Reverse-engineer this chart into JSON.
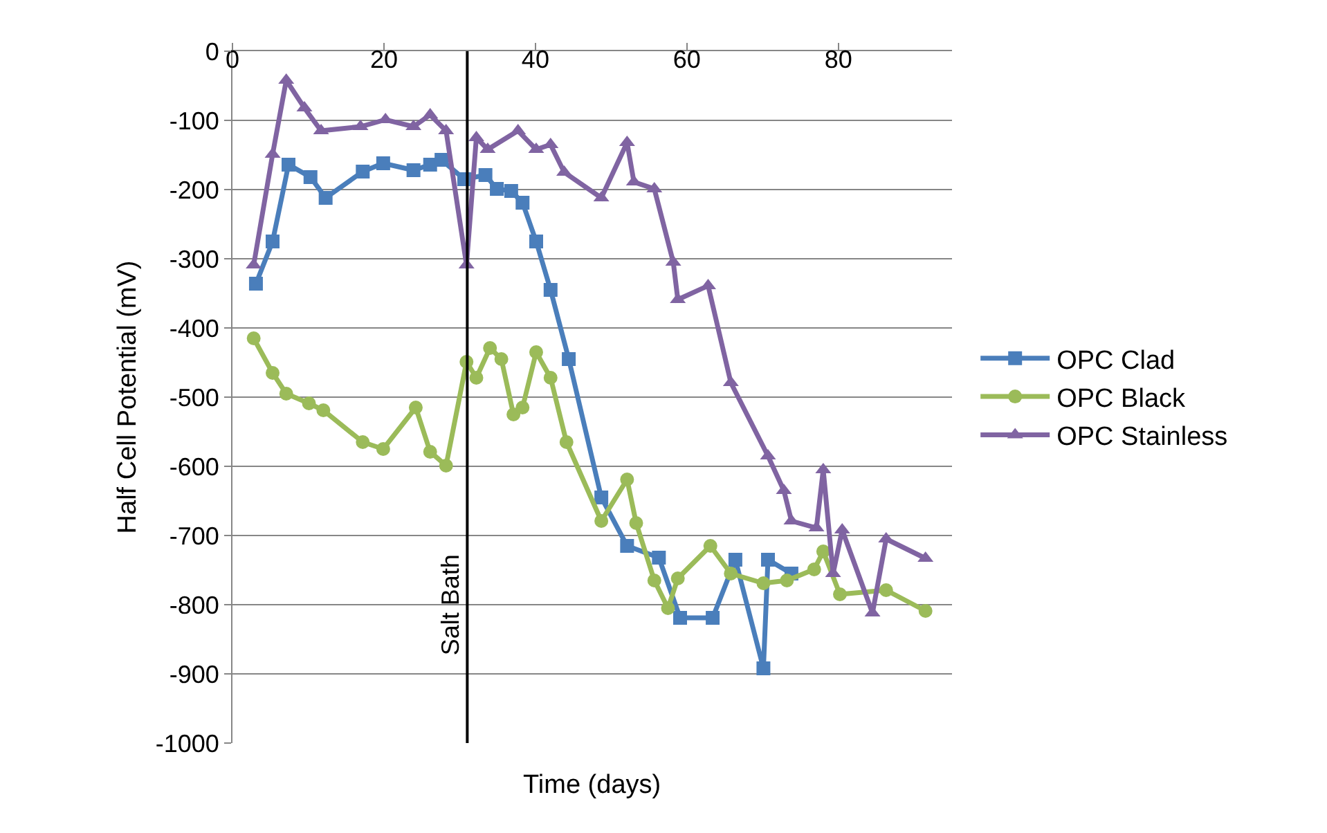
{
  "chart_data": {
    "type": "line",
    "xlabel": "Time (days)",
    "ylabel": "Half Cell Potential (mV)",
    "xlim": [
      0,
      95
    ],
    "xticks": [
      0,
      20,
      40,
      60,
      80
    ],
    "ylim": [
      -1000,
      0
    ],
    "yticks": [
      -1000,
      -900,
      -800,
      -700,
      -600,
      -500,
      -400,
      -300,
      -200,
      -100,
      0
    ],
    "grid": "y",
    "legend": "right",
    "line_style": "solid",
    "ref_lines": [
      {
        "axis": "x",
        "value": 31,
        "label": "Salt Bath",
        "color": "#000000"
      }
    ],
    "series": [
      {
        "name": "OPC Clad",
        "color": "#4a7ebb",
        "marker": "square",
        "x": [
          3.1,
          5.3,
          7.4,
          10.3,
          12.3,
          17.2,
          19.9,
          23.9,
          26.1,
          27.6,
          30.6,
          33.4,
          34.9,
          36.8,
          38.3,
          40.1,
          42.0,
          44.4,
          48.7,
          52.1,
          56.3,
          59.1,
          63.4,
          66.4,
          70.1,
          70.7,
          73.8
        ],
        "values": [
          -336,
          -275,
          -164,
          -182,
          -212,
          -174,
          -162,
          -172,
          -164,
          -157,
          -185,
          -179,
          -199,
          -202,
          -219,
          -275,
          -345,
          -445,
          -645,
          -715,
          -732,
          -819,
          -819,
          -735,
          -892,
          -735,
          -755
        ]
      },
      {
        "name": "OPC Black",
        "color": "#9bbb59",
        "marker": "circle",
        "x": [
          2.8,
          5.3,
          7.1,
          10.1,
          12.0,
          17.2,
          19.9,
          24.2,
          26.1,
          28.2,
          30.9,
          32.2,
          34.0,
          35.5,
          37.1,
          38.3,
          40.1,
          42.0,
          44.1,
          48.7,
          52.1,
          53.3,
          55.7,
          57.5,
          58.8,
          63.1,
          65.8,
          70.1,
          73.2,
          76.8,
          78.0,
          80.2,
          86.3,
          91.5
        ],
        "values": [
          -415,
          -465,
          -495,
          -509,
          -519,
          -565,
          -575,
          -515,
          -579,
          -599,
          -449,
          -472,
          -429,
          -445,
          -525,
          -515,
          -435,
          -472,
          -565,
          -679,
          -619,
          -682,
          -765,
          -805,
          -762,
          -715,
          -755,
          -769,
          -765,
          -749,
          -723,
          -785,
          -779,
          -809
        ]
      },
      {
        "name": "OPC Stainless",
        "color": "#8064a2",
        "marker": "triangle",
        "x": [
          2.8,
          5.3,
          7.1,
          9.5,
          11.7,
          16.9,
          20.2,
          23.9,
          26.1,
          28.2,
          30.9,
          32.2,
          33.7,
          37.7,
          40.1,
          42.0,
          43.8,
          48.7,
          52.1,
          53.0,
          55.7,
          58.2,
          58.8,
          62.8,
          65.8,
          70.7,
          72.8,
          73.8,
          77.1,
          78.0,
          79.3,
          80.5,
          84.5,
          86.3,
          91.5
        ],
        "values": [
          -309,
          -149,
          -42,
          -82,
          -115,
          -109,
          -99,
          -109,
          -92,
          -115,
          -309,
          -125,
          -142,
          -115,
          -142,
          -135,
          -175,
          -212,
          -132,
          -189,
          -199,
          -305,
          -359,
          -339,
          -479,
          -585,
          -635,
          -679,
          -689,
          -605,
          -755,
          -692,
          -812,
          -705,
          -733
        ]
      }
    ]
  }
}
